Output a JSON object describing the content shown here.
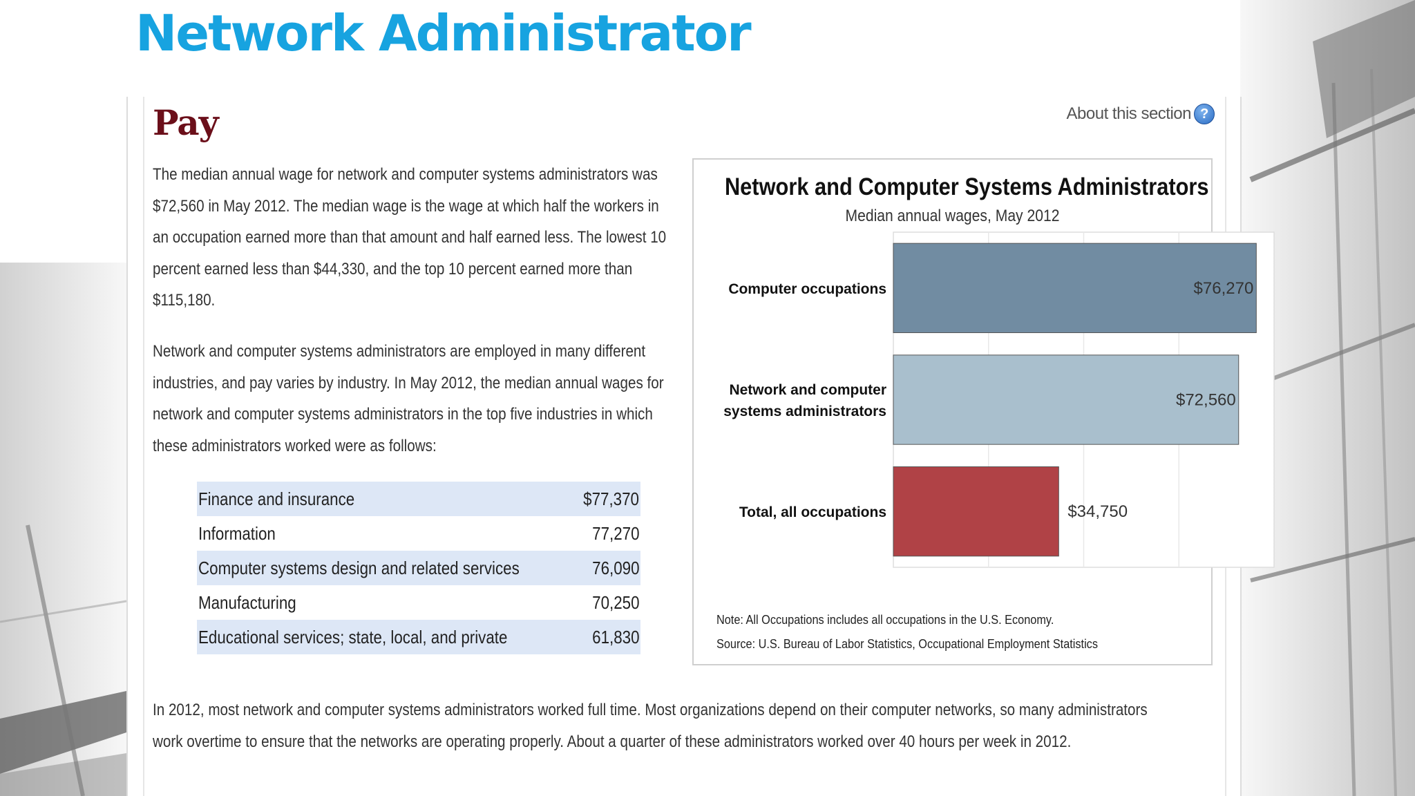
{
  "slide": {
    "title": "Network Administrator"
  },
  "section": {
    "heading": "Pay",
    "about_label": "About this section",
    "help_icon": "question-mark-icon"
  },
  "paragraphs": {
    "p1": "The median annual wage for network and computer systems administrators was $72,560 in May 2012. The median wage is the wage at which half the workers in an occupation earned more than that amount and half earned less. The lowest 10 percent earned less than $44,330, and the top 10 percent earned more than $115,180.",
    "p2": "Network and computer systems administrators are employed in many different industries, and pay varies by industry. In May 2012, the median annual wages for network and computer systems administrators in the top five industries in which these administrators worked were as follows:",
    "p3": "In 2012, most network and computer systems administrators worked full time. Most organizations depend on their computer networks, so many administrators work overtime to ensure that the networks are operating properly. About a quarter of these administrators worked over 40 hours per week in 2012."
  },
  "industry_table": [
    {
      "industry": "Finance and insurance",
      "wage": "$77,370"
    },
    {
      "industry": "Information",
      "wage": "77,270"
    },
    {
      "industry": "Computer systems design and related services",
      "wage": "76,090"
    },
    {
      "industry": "Manufacturing",
      "wage": "70,250"
    },
    {
      "industry": "Educational services; state, local, and private",
      "wage": "61,830"
    }
  ],
  "chart_data": {
    "type": "bar",
    "orientation": "horizontal",
    "title": "Network and Computer Systems Administrators",
    "subtitle": "Median annual wages, May 2012",
    "categories": [
      [
        "Computer occupations"
      ],
      [
        "Network and computer",
        "systems administrators"
      ],
      [
        "Total, all occupations"
      ]
    ],
    "values": [
      76270,
      72560,
      34750
    ],
    "value_labels": [
      "$76,270",
      "$72,560",
      "$34,750"
    ],
    "colors": [
      "#718ca2",
      "#a9bfcd",
      "#b04246"
    ],
    "xlim": [
      0,
      80000
    ],
    "grid": true,
    "note": "Note: All Occupations includes all occupations in the U.S. Economy.",
    "source": "Source: U.S. Bureau of Labor Statistics, Occupational Employment Statistics"
  }
}
